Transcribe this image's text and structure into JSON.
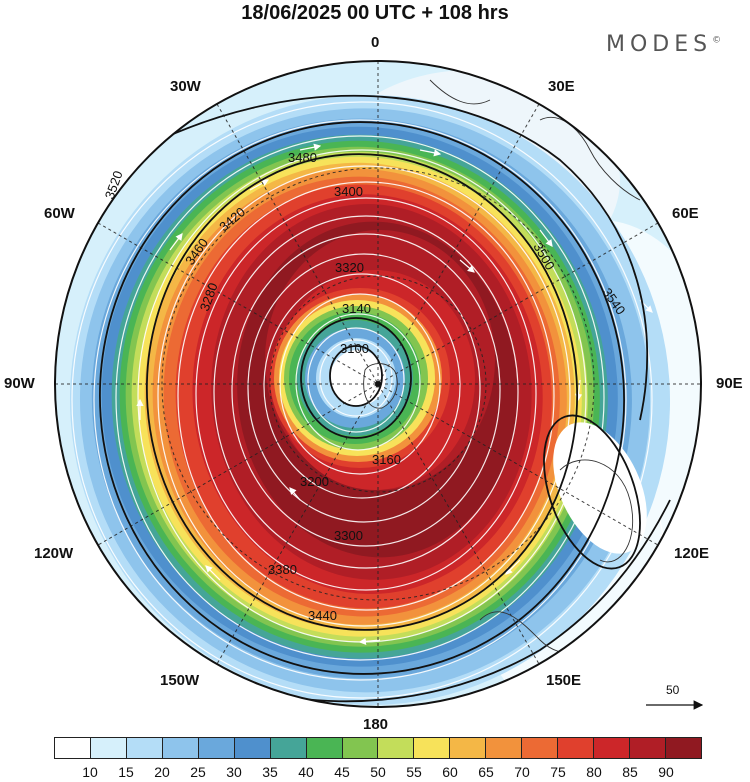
{
  "title": "18/06/2025  00 UTC  + 108 hrs",
  "logo": "MODES",
  "logo_mark": "©",
  "longitude_labels": {
    "lon_0": "0",
    "lon_30e": "30E",
    "lon_60e": "60E",
    "lon_90e": "90E",
    "lon_120e": "120E",
    "lon_150e": "150E",
    "lon_180": "180",
    "lon_150w": "150W",
    "lon_120w": "120W",
    "lon_90w": "90W",
    "lon_60w": "60W",
    "lon_30w": "30W"
  },
  "contour_labels": [
    "3100",
    "3140",
    "3160",
    "3200",
    "3280",
    "3300",
    "3320",
    "3380",
    "3400",
    "3420",
    "3440",
    "3460",
    "3480",
    "3500",
    "3520",
    "3540"
  ],
  "reference_vector": {
    "label": "50"
  },
  "colorbar": {
    "colors": [
      "#ffffff",
      "#d6f0fb",
      "#b4ddf7",
      "#8ec4ec",
      "#6aa8dc",
      "#4f90cd",
      "#45a598",
      "#4ab554",
      "#82c550",
      "#c3dd5a",
      "#f7e25a",
      "#f4b746",
      "#f2923c",
      "#ec6a34",
      "#e0402d",
      "#cc2629",
      "#b01e26",
      "#901921"
    ],
    "ticks": [
      "10",
      "15",
      "20",
      "25",
      "30",
      "35",
      "40",
      "45",
      "50",
      "55",
      "60",
      "65",
      "70",
      "75",
      "80",
      "85",
      "90"
    ]
  }
}
